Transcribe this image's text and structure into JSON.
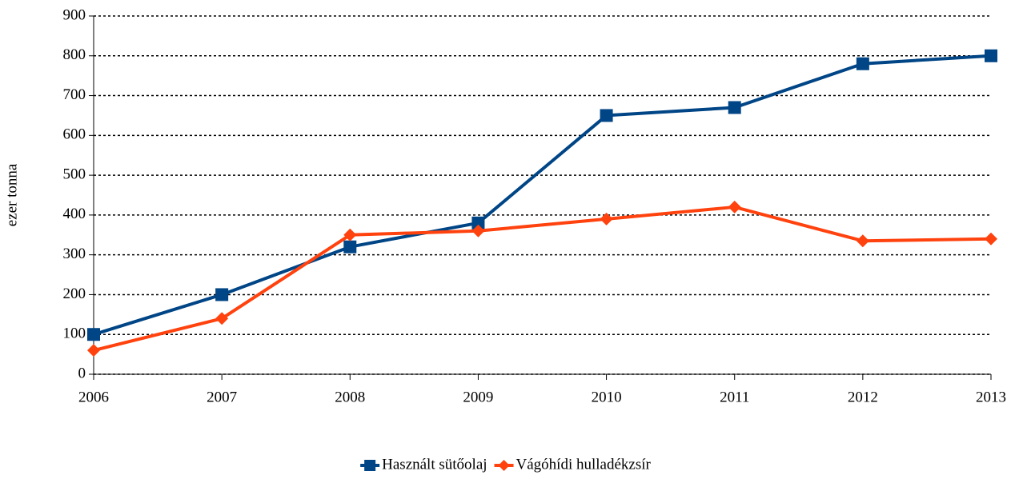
{
  "chart_data": {
    "type": "line",
    "y_label": "ezer tonna",
    "x": [
      2006,
      2007,
      2008,
      2009,
      2010,
      2011,
      2012,
      2013
    ],
    "series": [
      {
        "name": "Használt sütőolaj",
        "color": "#004586",
        "marker": "square",
        "values": [
          100,
          200,
          320,
          380,
          650,
          670,
          780,
          800
        ]
      },
      {
        "name": "Vágóhídi hulladékzsír",
        "color": "#ff420e",
        "marker": "diamond",
        "values": [
          60,
          140,
          350,
          360,
          390,
          420,
          335,
          340
        ]
      }
    ],
    "xlim": [
      2006,
      2013
    ],
    "xticks": [
      2006,
      2007,
      2008,
      2009,
      2010,
      2011,
      2012,
      2013
    ],
    "ylim": [
      0,
      900
    ],
    "yticks": [
      0,
      100,
      200,
      300,
      400,
      500,
      600,
      700,
      800,
      900
    ],
    "grid": true,
    "legend": "bottom"
  }
}
